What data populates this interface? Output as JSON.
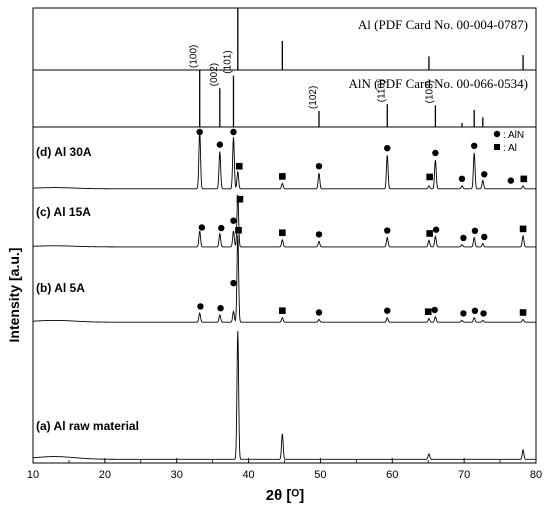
{
  "chart_data": {
    "type": "line",
    "xlabel": "2θ [ᴼ]",
    "ylabel": "Intensity [a.u.]",
    "xlim": [
      10,
      80
    ],
    "xticks": [
      10,
      20,
      30,
      40,
      50,
      60,
      70,
      80
    ],
    "legend": {
      "placement": "top-right of panel (d)",
      "entries": [
        {
          "marker": "circle",
          "label": ": AlN"
        },
        {
          "marker": "square",
          "label": ": Al"
        }
      ]
    },
    "reference_cards": [
      {
        "label": "Al (PDF Card No. 00-004-0787)",
        "lines": [
          {
            "x": 38.5,
            "rel": 1.0
          },
          {
            "x": 44.7,
            "rel": 0.47
          },
          {
            "x": 65.1,
            "rel": 0.22
          },
          {
            "x": 78.2,
            "rel": 0.24
          }
        ]
      },
      {
        "label": "AlN (PDF Card No. 00-066-0534)",
        "lines": [
          {
            "x": 33.2,
            "rel": 1.0,
            "hkl": "(100)"
          },
          {
            "x": 36.0,
            "rel": 0.68,
            "hkl": "(002)"
          },
          {
            "x": 37.9,
            "rel": 0.9,
            "hkl": "(101)"
          },
          {
            "x": 49.8,
            "rel": 0.28,
            "hkl": "(102)"
          },
          {
            "x": 59.3,
            "rel": 0.4,
            "hkl": "(110)"
          },
          {
            "x": 66.0,
            "rel": 0.38,
            "hkl": "(103)"
          },
          {
            "x": 69.7,
            "rel": 0.07
          },
          {
            "x": 71.4,
            "rel": 0.3
          },
          {
            "x": 72.6,
            "rel": 0.17
          }
        ]
      }
    ],
    "series": [
      {
        "name": "(d) Al 30A",
        "baseline": 0.02,
        "peaks": [
          {
            "x": 33.2,
            "h": 0.96
          },
          {
            "x": 36.0,
            "h": 0.62
          },
          {
            "x": 37.9,
            "h": 0.86
          },
          {
            "x": 38.5,
            "h": 0.29
          },
          {
            "x": 44.7,
            "h": 0.09
          },
          {
            "x": 49.8,
            "h": 0.26
          },
          {
            "x": 59.3,
            "h": 0.56
          },
          {
            "x": 65.1,
            "h": 0.05
          },
          {
            "x": 66.0,
            "h": 0.48
          },
          {
            "x": 69.7,
            "h": 0.05
          },
          {
            "x": 71.4,
            "h": 0.6
          },
          {
            "x": 72.6,
            "h": 0.14
          },
          {
            "x": 78.2,
            "h": 0.05
          }
        ],
        "markers": [
          {
            "x": 33.2,
            "type": "circle"
          },
          {
            "x": 36.0,
            "type": "circle"
          },
          {
            "x": 37.9,
            "type": "circle"
          },
          {
            "x": 38.7,
            "type": "square"
          },
          {
            "x": 44.7,
            "type": "square"
          },
          {
            "x": 49.8,
            "type": "circle"
          },
          {
            "x": 59.3,
            "type": "circle"
          },
          {
            "x": 65.2,
            "type": "square"
          },
          {
            "x": 66.0,
            "type": "circle"
          },
          {
            "x": 69.7,
            "type": "circle"
          },
          {
            "x": 71.4,
            "type": "circle"
          },
          {
            "x": 72.8,
            "type": "circle"
          },
          {
            "x": 76.5,
            "type": "circle"
          },
          {
            "x": 78.3,
            "type": "square"
          }
        ]
      },
      {
        "name": "(c) Al 15A",
        "baseline": 0.02,
        "peaks": [
          {
            "x": 33.2,
            "h": 0.29
          },
          {
            "x": 36.0,
            "h": 0.24
          },
          {
            "x": 37.9,
            "h": 0.29
          },
          {
            "x": 38.5,
            "h": 0.95
          },
          {
            "x": 44.7,
            "h": 0.13
          },
          {
            "x": 49.8,
            "h": 0.1
          },
          {
            "x": 59.3,
            "h": 0.17
          },
          {
            "x": 65.1,
            "h": 0.12
          },
          {
            "x": 66.0,
            "h": 0.19
          },
          {
            "x": 69.7,
            "h": 0.04
          },
          {
            "x": 71.4,
            "h": 0.17
          },
          {
            "x": 72.6,
            "h": 0.06
          },
          {
            "x": 78.2,
            "h": 0.2
          }
        ],
        "markers": [
          {
            "x": 33.5,
            "type": "circle"
          },
          {
            "x": 36.2,
            "type": "circle"
          },
          {
            "x": 37.9,
            "type": "circle"
          },
          {
            "x": 38.8,
            "type": "square"
          },
          {
            "x": 44.7,
            "type": "square"
          },
          {
            "x": 49.8,
            "type": "circle"
          },
          {
            "x": 59.3,
            "type": "circle"
          },
          {
            "x": 65.2,
            "type": "square"
          },
          {
            "x": 66.1,
            "type": "circle"
          },
          {
            "x": 69.9,
            "type": "circle"
          },
          {
            "x": 71.5,
            "type": "circle"
          },
          {
            "x": 72.8,
            "type": "circle"
          },
          {
            "x": 78.2,
            "type": "square"
          }
        ]
      },
      {
        "name": "(b) Al 5A",
        "baseline": 0.02,
        "peaks": [
          {
            "x": 33.2,
            "h": 0.1
          },
          {
            "x": 36.0,
            "h": 0.08
          },
          {
            "x": 37.9,
            "h": 0.12
          },
          {
            "x": 38.5,
            "h": 0.97
          },
          {
            "x": 44.7,
            "h": 0.05
          },
          {
            "x": 49.8,
            "h": 0.03
          },
          {
            "x": 59.3,
            "h": 0.05
          },
          {
            "x": 65.1,
            "h": 0.04
          },
          {
            "x": 66.0,
            "h": 0.06
          },
          {
            "x": 69.7,
            "h": 0.02
          },
          {
            "x": 71.4,
            "h": 0.05
          },
          {
            "x": 72.6,
            "h": 0.02
          },
          {
            "x": 78.2,
            "h": 0.03
          }
        ],
        "markers": [
          {
            "x": 33.3,
            "type": "circle"
          },
          {
            "x": 36.1,
            "type": "circle"
          },
          {
            "x": 37.9,
            "type": "circle"
          },
          {
            "x": 38.6,
            "type": "square"
          },
          {
            "x": 44.7,
            "type": "square"
          },
          {
            "x": 49.8,
            "type": "circle"
          },
          {
            "x": 59.3,
            "type": "circle"
          },
          {
            "x": 65.0,
            "type": "square"
          },
          {
            "x": 65.9,
            "type": "circle"
          },
          {
            "x": 69.9,
            "type": "circle"
          },
          {
            "x": 71.5,
            "type": "circle"
          },
          {
            "x": 72.7,
            "type": "circle"
          },
          {
            "x": 78.2,
            "type": "square"
          }
        ]
      },
      {
        "name": "(a) Al raw material",
        "baseline": 0.02,
        "peaks": [
          {
            "x": 38.5,
            "h": 0.95
          },
          {
            "x": 44.7,
            "h": 0.19
          },
          {
            "x": 65.1,
            "h": 0.04
          },
          {
            "x": 78.2,
            "h": 0.07
          }
        ],
        "markers": []
      }
    ]
  }
}
